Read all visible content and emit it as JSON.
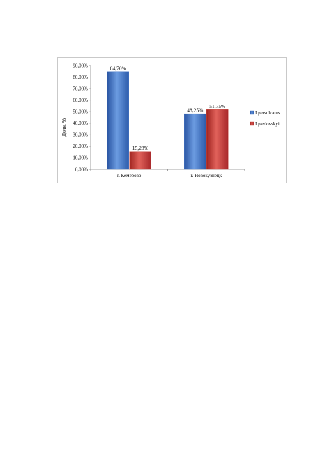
{
  "chart_data": {
    "type": "bar",
    "categories": [
      "г. Кемерово",
      "г. Новокузнецк"
    ],
    "series": [
      {
        "name": "I.persulcatus",
        "values": [
          84.7,
          48.25
        ],
        "labels": [
          "84,70%",
          "48,25%"
        ],
        "color": "#3a6fc4"
      },
      {
        "name": "I.pavlovskyi",
        "values": [
          15.28,
          51.75
        ],
        "labels": [
          "15,28%",
          "51,75%"
        ],
        "color": "#c0392f"
      }
    ],
    "ylabel": "Доля, %",
    "xlabel": "",
    "ylim": [
      0,
      90
    ],
    "yticks": [
      "0,00%",
      "10,00%",
      "20,00%",
      "30,00%",
      "40,00%",
      "50,00%",
      "60,00%",
      "70,00%",
      "80,00%",
      "90,00%"
    ],
    "grid": false,
    "legend": "right"
  }
}
